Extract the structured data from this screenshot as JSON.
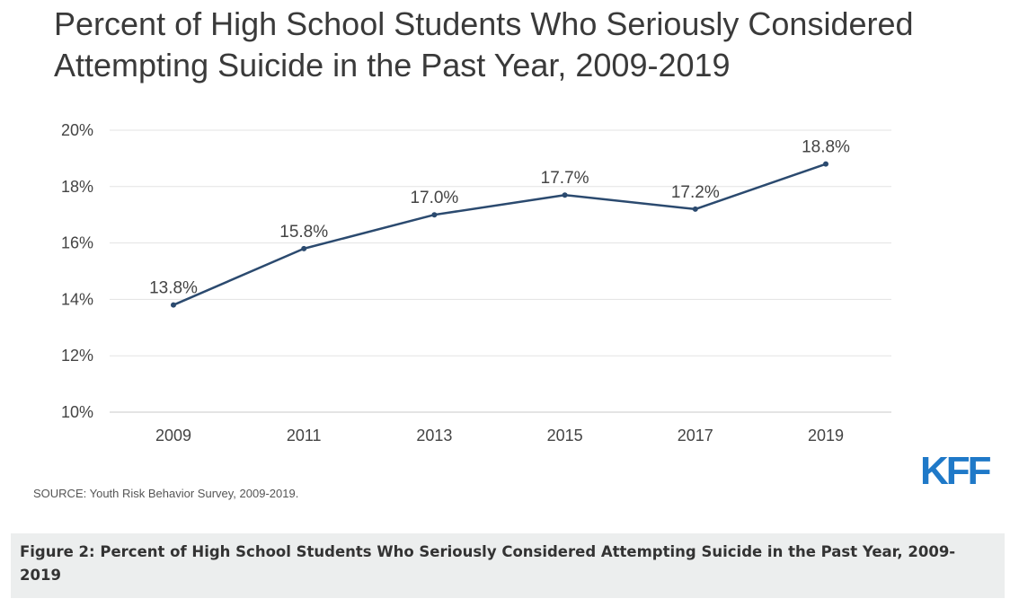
{
  "header": {
    "title": "Percent of High School Students Who Seriously Considered Attempting Suicide in the Past Year, 2009-2019"
  },
  "chart_data": {
    "type": "line",
    "title": "Percent of High School Students Who Seriously Considered Attempting Suicide in the Past Year, 2009-2019",
    "categories": [
      "2009",
      "2011",
      "2013",
      "2015",
      "2017",
      "2019"
    ],
    "values": [
      13.8,
      15.8,
      17.0,
      17.7,
      17.2,
      18.8
    ],
    "data_labels": [
      "13.8%",
      "15.8%",
      "17.0%",
      "17.7%",
      "17.2%",
      "18.8%"
    ],
    "ylim": [
      10,
      20
    ],
    "y_ticks": [
      10,
      12,
      14,
      16,
      18,
      20
    ],
    "y_tick_labels": [
      "10%",
      "12%",
      "14%",
      "16%",
      "18%",
      "20%"
    ],
    "grid": true,
    "legend": "none",
    "line_color": "#2b4a6f"
  },
  "footer": {
    "source": "SOURCE: Youth Risk Behavior Survey, 2009-2019.",
    "logo_text": "KFF",
    "logo_color": "#1f79c8"
  },
  "caption": {
    "text": "Figure 2: Percent of High School Students Who Seriously Considered Attempting Suicide in the Past Year, 2009-2019"
  }
}
